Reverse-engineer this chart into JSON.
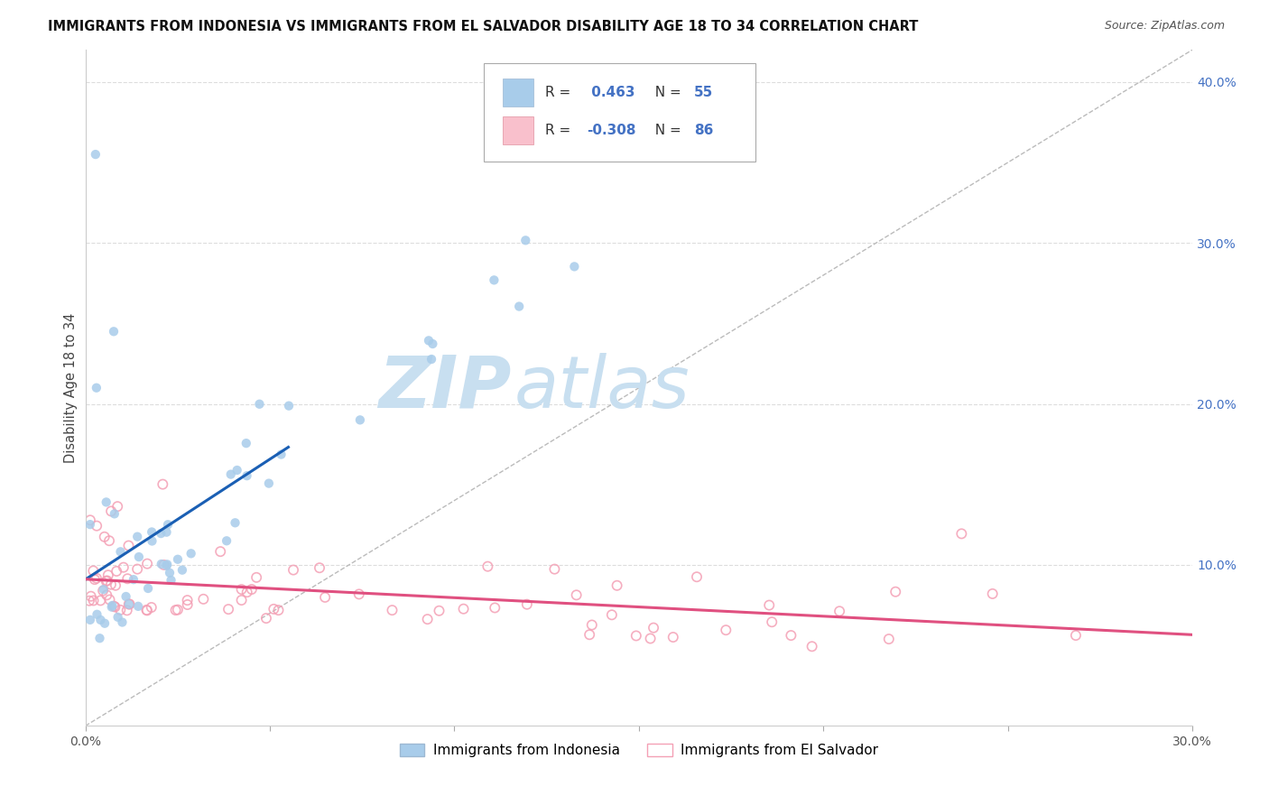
{
  "title": "IMMIGRANTS FROM INDONESIA VS IMMIGRANTS FROM EL SALVADOR DISABILITY AGE 18 TO 34 CORRELATION CHART",
  "source": "Source: ZipAtlas.com",
  "ylabel": "Disability Age 18 to 34",
  "x_min": 0.0,
  "x_max": 0.3,
  "y_min": 0.0,
  "y_max": 0.42,
  "legend_label1": "Immigrants from Indonesia",
  "legend_label2": "Immigrants from El Salvador",
  "R1": 0.463,
  "N1": 55,
  "R2": -0.308,
  "N2": 86,
  "color1": "#A8CCEA",
  "color2_face": "none",
  "color2_edge": "#F4A0B5",
  "line_color1": "#1A5FB4",
  "line_color2": "#E05080",
  "diag_color": "#BBBBBB",
  "watermark_color": "#C8DFF0",
  "grid_color": "#DDDDDD",
  "ytick_color": "#4472C4",
  "xtick_color": "#555555",
  "title_color": "#111111",
  "source_color": "#555555"
}
